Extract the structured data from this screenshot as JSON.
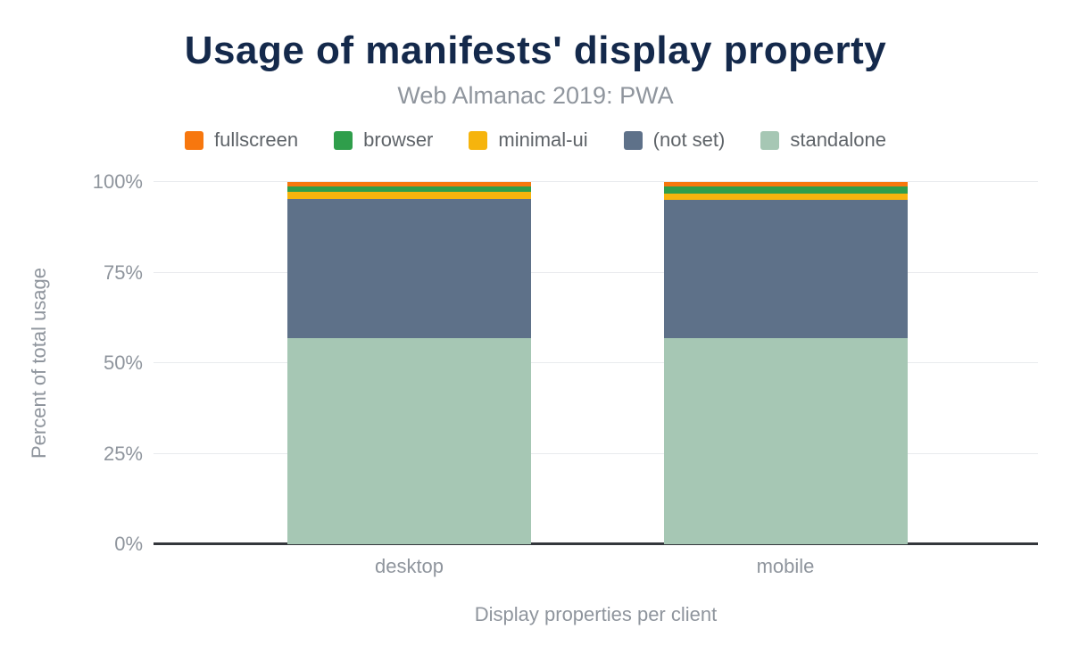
{
  "chart": {
    "title": "Usage of manifests' display property",
    "subtitle": "Web Almanac 2019: PWA",
    "y_axis_title": "Percent of total usage",
    "x_axis_title": "Display properties per client"
  },
  "chart_data": {
    "type": "bar",
    "stacked": true,
    "categories": [
      "desktop",
      "mobile"
    ],
    "series": [
      {
        "name": "standalone",
        "color": "#a6c7b4",
        "values": [
          57.0,
          57.0
        ]
      },
      {
        "name": "(not set)",
        "color": "#5e7189",
        "values": [
          38.3,
          38.0
        ]
      },
      {
        "name": "minimal-ui",
        "color": "#f6b40d",
        "values": [
          2.0,
          1.7
        ]
      },
      {
        "name": "browser",
        "color": "#2f9e4b",
        "values": [
          1.5,
          2.0
        ]
      },
      {
        "name": "fullscreen",
        "color": "#f7770e",
        "values": [
          1.2,
          1.3
        ]
      }
    ],
    "legend": [
      {
        "label": "fullscreen",
        "color": "#f7770e"
      },
      {
        "label": "browser",
        "color": "#2f9e4b"
      },
      {
        "label": "minimal-ui",
        "color": "#f6b40d"
      },
      {
        "label": "(not set)",
        "color": "#5e7189"
      },
      {
        "label": "standalone",
        "color": "#a6c7b4"
      }
    ],
    "y_ticks": [
      "0%",
      "25%",
      "50%",
      "75%",
      "100%"
    ],
    "ylim": [
      0,
      100
    ],
    "grid": true,
    "legend_position": "top",
    "ylabel": "Percent of total usage",
    "xlabel": "Display properties per client"
  }
}
